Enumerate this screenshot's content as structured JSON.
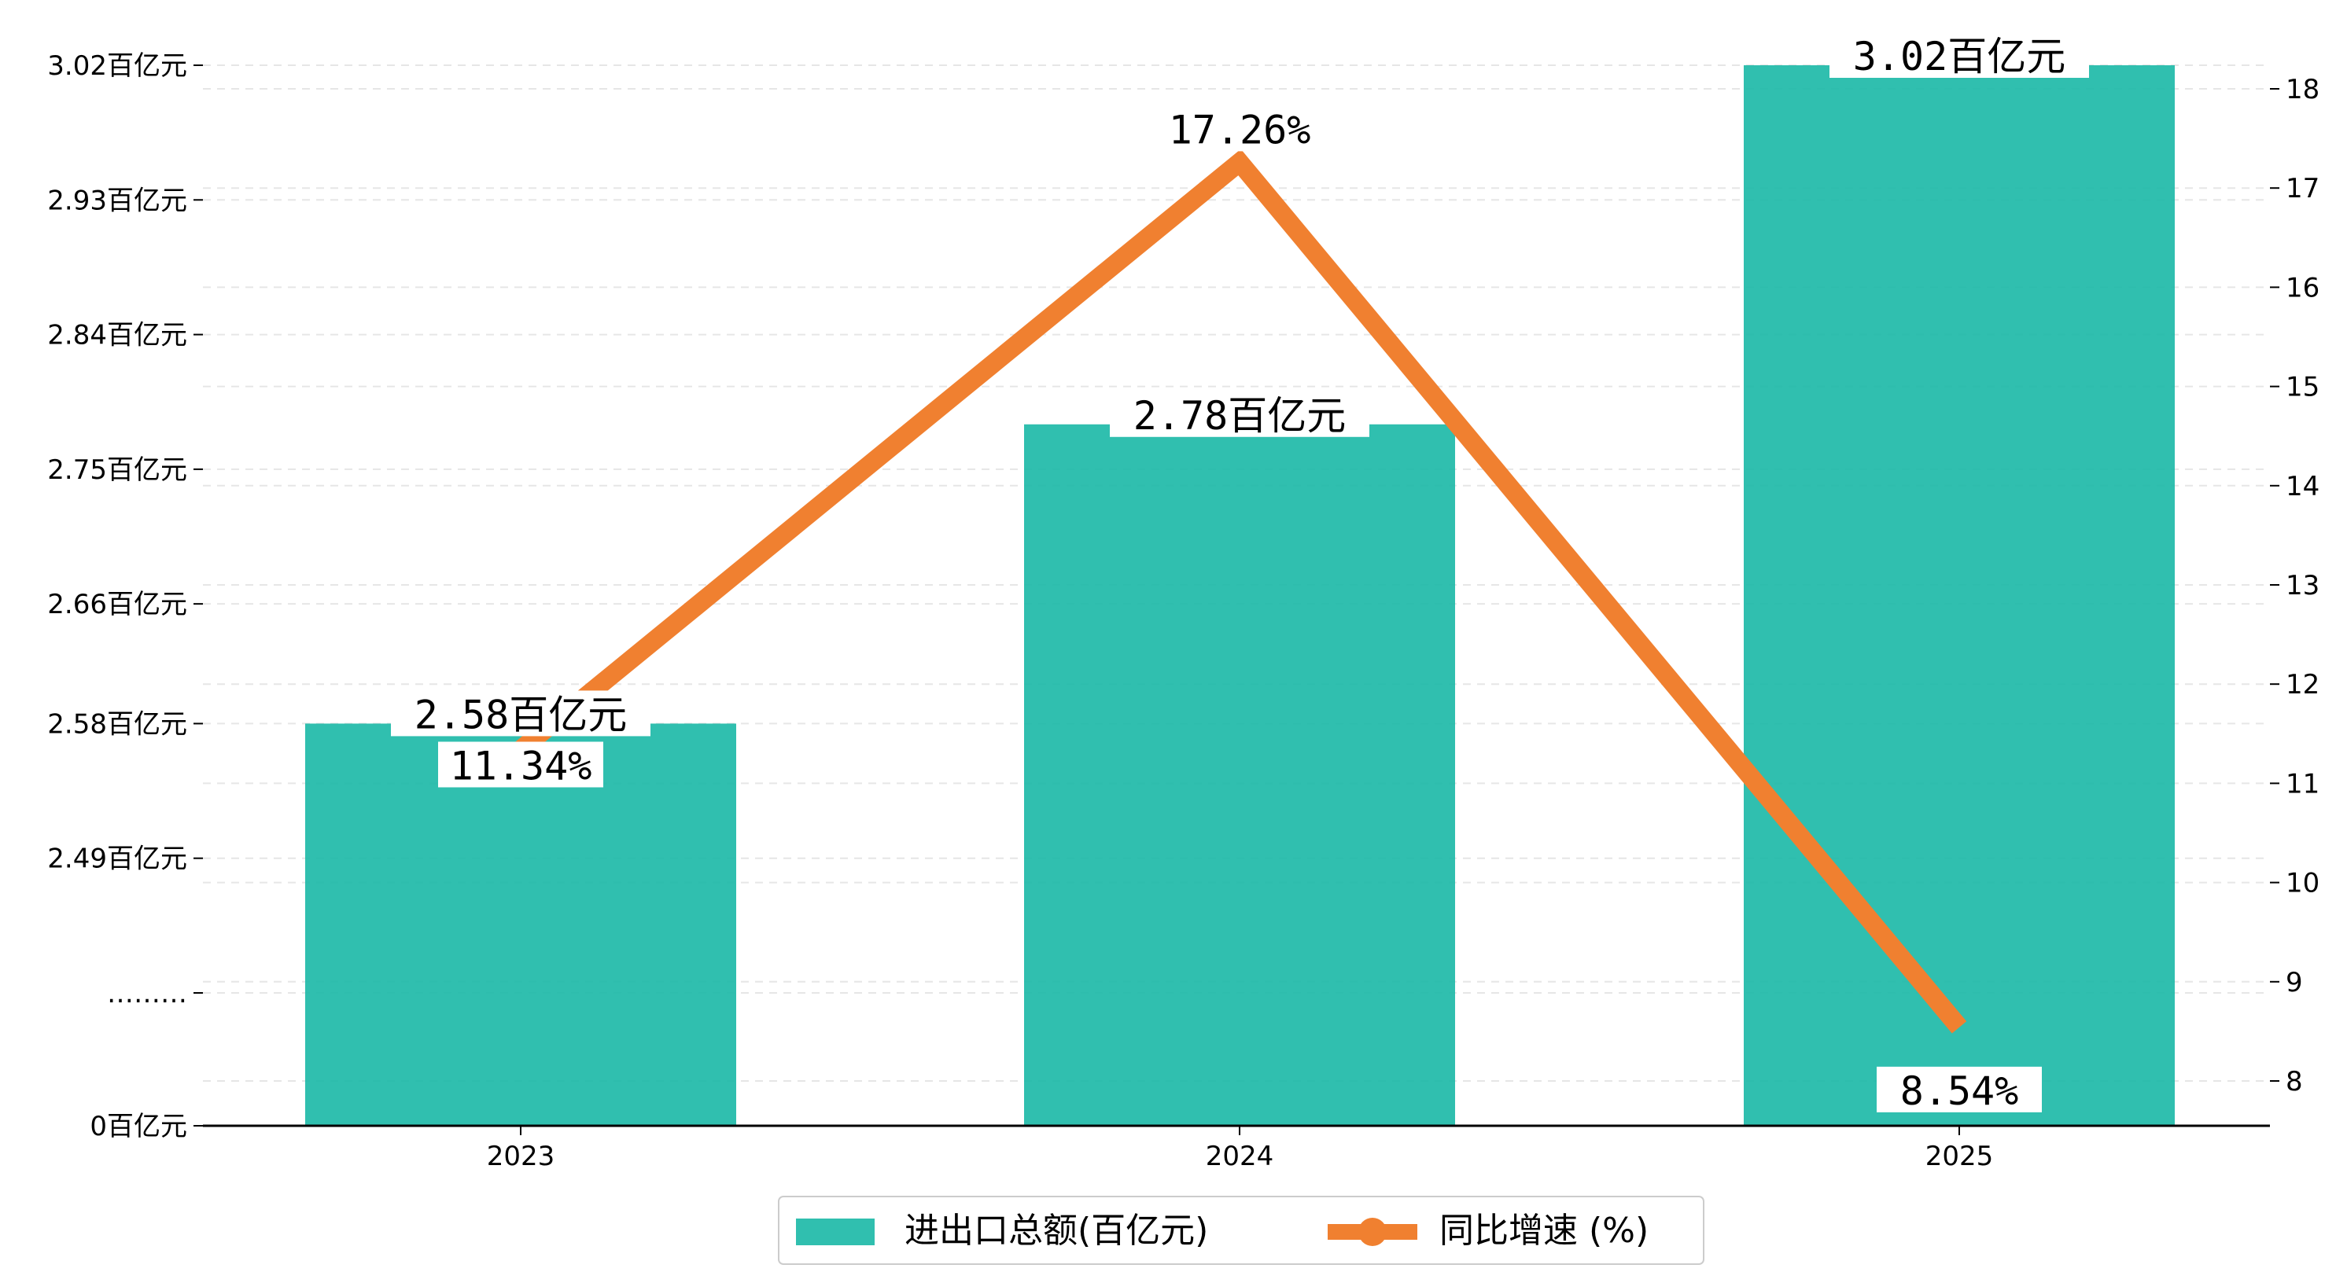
{
  "chart_data": {
    "type": "bar",
    "categories": [
      "2023",
      "2024",
      "2025"
    ],
    "series": [
      {
        "name": "进出口总额(百亿元)",
        "type": "bar",
        "axis": "left",
        "values": [
          2.58,
          2.78,
          3.02
        ],
        "labels": [
          "2.58百亿元",
          "2.78百亿元",
          "3.02百亿元"
        ],
        "color": "#1ab8a6"
      },
      {
        "name": "同比增速 (%)",
        "type": "line",
        "axis": "right",
        "values": [
          11.34,
          17.26,
          8.54
        ],
        "labels": [
          "11.34%",
          "17.26%",
          "8.54%"
        ],
        "color": "#f08030"
      }
    ],
    "left_axis": {
      "break": true,
      "ticks": [
        {
          "value": 0,
          "label": "0百亿元"
        },
        {
          "value": 2.4,
          "label": "………"
        },
        {
          "value": 2.49,
          "label": "2.49百亿元"
        },
        {
          "value": 2.58,
          "label": "2.58百亿元"
        },
        {
          "value": 2.66,
          "label": "2.66百亿元"
        },
        {
          "value": 2.75,
          "label": "2.75百亿元"
        },
        {
          "value": 2.84,
          "label": "2.84百亿元"
        },
        {
          "value": 2.93,
          "label": "2.93百亿元"
        },
        {
          "value": 3.02,
          "label": "3.02百亿元"
        }
      ]
    },
    "right_axis": {
      "ylim": [
        7.55,
        18.5
      ],
      "ticks": [
        "8",
        "9",
        "10",
        "11",
        "12",
        "13",
        "14",
        "15",
        "16",
        "17",
        "18"
      ]
    },
    "grid": true,
    "legend_position": "bottom-center"
  }
}
